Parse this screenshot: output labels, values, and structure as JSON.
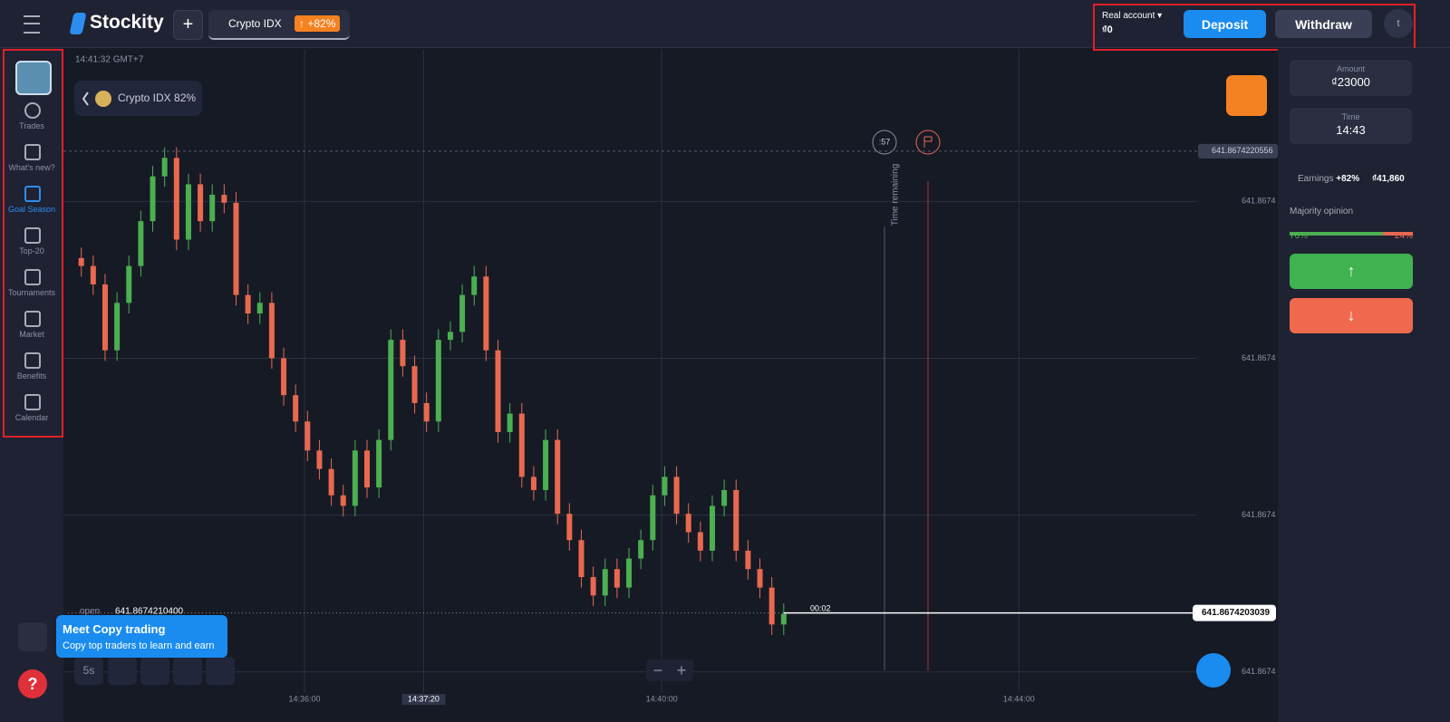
{
  "header": {
    "logo": "Stockity",
    "asset": "Crypto IDX",
    "payout": "+82%",
    "account_type": "Real account",
    "balance": "₫0",
    "deposit": "Deposit",
    "withdraw": "Withdraw",
    "avatar": "t"
  },
  "sidebar": {
    "items": [
      "Trades",
      "What's new?",
      "Goal Season",
      "Top-20",
      "Tournaments",
      "Market",
      "Benefits",
      "Calendar"
    ]
  },
  "chart_overlay": {
    "clock": "14:41:32 GMT+7",
    "asset_chip": "Crypto IDX 82%",
    "timer": ":57",
    "time_remaining": "Time remaining",
    "open_label": "open",
    "open_price": {
      "value": 641.86742104,
      "label": "641.8674210400"
    },
    "countdown": "00:02",
    "timeframe": "5s"
  },
  "chart_data": {
    "type": "candlestick",
    "x": [
      "14:33:30",
      "14:33:38",
      "14:33:46",
      "14:33:54",
      "14:34:02",
      "14:34:10",
      "14:34:18",
      "14:34:26",
      "14:34:34",
      "14:34:42",
      "14:34:50",
      "14:34:58",
      "14:35:06",
      "14:35:14",
      "14:35:22",
      "14:35:30",
      "14:35:38",
      "14:35:46",
      "14:35:54",
      "14:36:02",
      "14:36:10",
      "14:36:18",
      "14:36:26",
      "14:36:34",
      "14:36:42",
      "14:36:50",
      "14:36:58",
      "14:37:06",
      "14:37:14",
      "14:37:22",
      "14:37:30",
      "14:37:38",
      "14:37:46",
      "14:37:54",
      "14:38:02",
      "14:38:10",
      "14:38:18",
      "14:38:26",
      "14:38:34",
      "14:38:42",
      "14:38:50",
      "14:38:58",
      "14:39:06",
      "14:39:14",
      "14:39:22",
      "14:39:30",
      "14:39:38",
      "14:39:46",
      "14:39:54",
      "14:40:02",
      "14:40:10",
      "14:40:18",
      "14:40:26",
      "14:40:34",
      "14:40:42",
      "14:40:50",
      "14:40:58",
      "14:41:06",
      "14:41:14",
      "14:41:22"
    ],
    "open": [
      641.86742165,
      641.86742162,
      641.86742155,
      641.8674213,
      641.86742148,
      641.86742162,
      641.86742179,
      641.86742196,
      641.86742203,
      641.86742172,
      641.86742193,
      641.86742179,
      641.86742189,
      641.86742186,
      641.86742151,
      641.86742144,
      641.86742148,
      641.86742127,
      641.86742113,
      641.86742103,
      641.86742092,
      641.86742085,
      641.86742075,
      641.86742071,
      641.86742092,
      641.86742078,
      641.86742096,
      641.86742134,
      641.86742124,
      641.8674211,
      641.86742103,
      641.86742134,
      641.86742137,
      641.86742151,
      641.86742158,
      641.8674213,
      641.86742099,
      641.86742106,
      641.86742082,
      641.86742077,
      641.86742096,
      641.86742068,
      641.86742058,
      641.86742044,
      641.86742037,
      641.86742047,
      641.8674204,
      641.86742051,
      641.86742058,
      641.86742075,
      641.86742082,
      641.86742068,
      641.86742061,
      641.86742054,
      641.86742071,
      641.86742077,
      641.86742054,
      641.86742047,
      641.8674204,
      641.86742026
    ],
    "high": [
      641.86742169,
      641.86742166,
      641.86742159,
      641.86742152,
      641.86742166,
      641.86742183,
      641.867422,
      641.86742207,
      641.86742207,
      641.86742197,
      641.86742197,
      641.86742193,
      641.86742193,
      641.8674219,
      641.86742155,
      641.86742152,
      641.86742152,
      641.86742131,
      641.86742117,
      641.86742107,
      641.86742096,
      641.86742089,
      641.86742079,
      641.86742096,
      641.86742096,
      641.867421,
      641.86742138,
      641.86742138,
      641.86742128,
      641.86742114,
      641.86742138,
      641.86742141,
      641.86742155,
      641.86742162,
      641.86742162,
      641.86742134,
      641.8674211,
      641.8674211,
      641.86742086,
      641.867421,
      641.867421,
      641.86742072,
      641.86742062,
      641.86742048,
      641.86742051,
      641.86742051,
      641.86742055,
      641.86742062,
      641.86742079,
      641.86742086,
      641.86742086,
      641.86742072,
      641.86742065,
      641.86742075,
      641.86742081,
      641.86742081,
      641.86742058,
      641.86742051,
      641.86742044,
      641.86742034
    ],
    "low": [
      641.86742158,
      641.86742151,
      641.86742126,
      641.86742126,
      641.86742144,
      641.86742158,
      641.86742175,
      641.86742192,
      641.86742168,
      641.86742168,
      641.86742175,
      641.86742175,
      641.86742182,
      641.86742147,
      641.8674214,
      641.8674214,
      641.86742123,
      641.86742109,
      641.86742099,
      641.86742088,
      641.86742081,
      641.86742071,
      641.86742067,
      641.86742067,
      641.86742074,
      641.86742074,
      641.86742092,
      641.8674212,
      641.86742106,
      641.86742099,
      641.86742099,
      641.8674213,
      641.86742133,
      641.86742147,
      641.86742126,
      641.86742095,
      641.86742095,
      641.86742078,
      641.86742073,
      641.86742073,
      641.86742064,
      641.86742054,
      641.8674204,
      641.86742033,
      641.86742033,
      641.86742036,
      641.86742036,
      641.86742047,
      641.86742054,
      641.86742071,
      641.86742064,
      641.86742057,
      641.8674205,
      641.8674205,
      641.86742067,
      641.8674205,
      641.86742043,
      641.86742036,
      641.86742022,
      641.86742022
    ],
    "close": [
      641.86742162,
      641.86742155,
      641.8674213,
      641.86742148,
      641.86742162,
      641.86742179,
      641.86742196,
      641.86742203,
      641.86742172,
      641.86742193,
      641.86742179,
      641.86742189,
      641.86742186,
      641.86742151,
      641.86742144,
      641.86742148,
      641.86742127,
      641.86742113,
      641.86742103,
      641.86742092,
      641.86742085,
      641.86742075,
      641.86742071,
      641.86742092,
      641.86742078,
      641.86742096,
      641.86742134,
      641.86742124,
      641.8674211,
      641.86742103,
      641.86742134,
      641.86742137,
      641.86742151,
      641.86742158,
      641.8674213,
      641.86742099,
      641.86742106,
      641.86742082,
      641.86742077,
      641.86742096,
      641.86742068,
      641.86742058,
      641.86742044,
      641.86742037,
      641.86742047,
      641.8674204,
      641.86742051,
      641.86742058,
      641.86742075,
      641.86742082,
      641.86742068,
      641.86742061,
      641.86742054,
      641.86742071,
      641.86742077,
      641.86742054,
      641.86742047,
      641.8674204,
      641.86742026,
      641.8674203
    ],
    "up_color": "#4caf50",
    "down_color": "#e8694f",
    "xlim": [
      "14:33:18",
      "14:46:54"
    ],
    "xticks": [
      "14:36:00",
      "14:40:00",
      "14:44:00"
    ],
    "crosshair_x": "14:37:20",
    "ylim": [
      641.86742,
      641.86742244
    ],
    "yticks": [
      {
        "value": 641.86742008,
        "label": "641.8674"
      },
      {
        "value": 641.867420675,
        "label": "641.8674"
      },
      {
        "value": 641.86742127,
        "label": "641.8674"
      },
      {
        "value": 641.867421865,
        "label": "641.8674"
      }
    ],
    "top_price": 641.8674220556,
    "current_price": 641.8674203039,
    "grid": true
  },
  "copy_trading": {
    "title": "Meet Copy trading",
    "text": "Copy top traders to learn and earn"
  },
  "trade_panel": {
    "amount_label": "Amount",
    "amount": "₫23000",
    "time_label": "Time",
    "time": "14:43",
    "earnings_label": "Earnings",
    "earnings_pct": "+82%",
    "earnings_value": "₫41,860",
    "majority_label": "Majority opinion",
    "majority_up": {
      "value": 76,
      "label": "76%"
    },
    "majority_down": {
      "value": 24,
      "label": "24%"
    }
  }
}
